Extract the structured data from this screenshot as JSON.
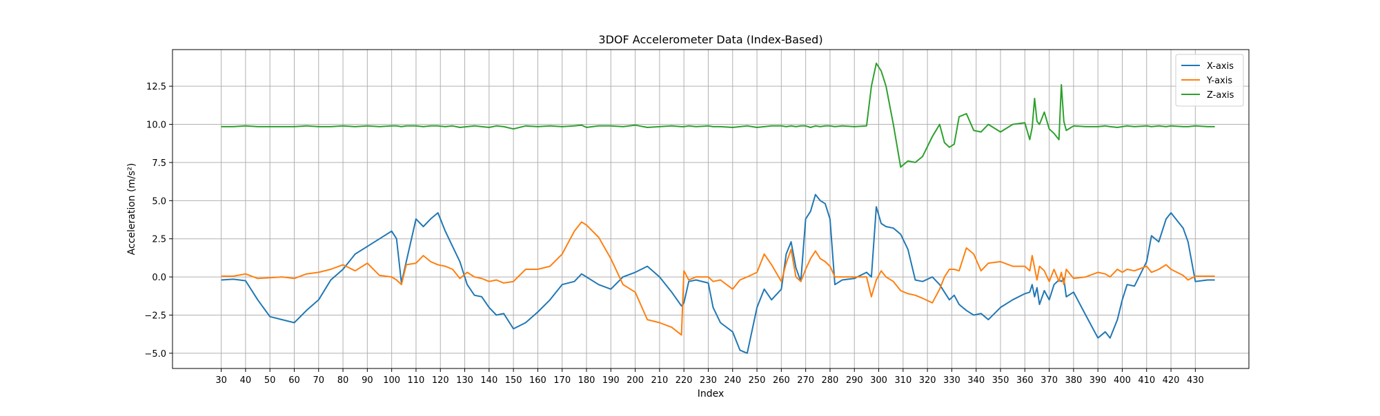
{
  "chart_data": {
    "type": "line",
    "title": "3DOF Accelerometer Data (Index-Based)",
    "xlabel": "Index",
    "ylabel": "Acceleration (m/s²)",
    "xlim": [
      10,
      452
    ],
    "ylim": [
      -6.0,
      14.9
    ],
    "xticks": [
      30,
      40,
      50,
      60,
      70,
      80,
      90,
      100,
      110,
      120,
      130,
      140,
      150,
      160,
      170,
      180,
      190,
      200,
      210,
      220,
      230,
      240,
      250,
      260,
      270,
      280,
      290,
      300,
      310,
      320,
      330,
      340,
      350,
      360,
      370,
      380,
      390,
      400,
      410,
      420,
      430
    ],
    "yticks": [
      -5.0,
      -2.5,
      0.0,
      2.5,
      5.0,
      7.5,
      10.0,
      12.5
    ],
    "ytick_labels": [
      "−5.0",
      "−2.5",
      "0.0",
      "2.5",
      "5.0",
      "7.5",
      "10.0",
      "12.5"
    ],
    "grid": true,
    "legend_position": "top-right",
    "x": [
      30,
      35,
      40,
      45,
      50,
      55,
      60,
      65,
      70,
      75,
      80,
      85,
      90,
      95,
      100,
      102,
      104,
      106,
      110,
      113,
      116,
      119,
      122,
      125,
      128,
      131,
      134,
      137,
      140,
      143,
      146,
      150,
      155,
      160,
      165,
      170,
      175,
      178,
      180,
      185,
      190,
      195,
      200,
      205,
      210,
      215,
      219,
      220,
      222,
      225,
      230,
      232,
      235,
      240,
      243,
      246,
      250,
      253,
      256,
      260,
      262,
      264,
      266,
      268,
      270,
      272,
      274,
      276,
      278,
      280,
      282,
      285,
      290,
      295,
      297,
      299,
      301,
      303,
      306,
      309,
      312,
      315,
      318,
      322,
      325,
      327,
      329,
      331,
      333,
      336,
      339,
      342,
      345,
      350,
      355,
      360,
      362,
      363,
      364,
      365,
      366,
      368,
      370,
      372,
      374,
      375,
      376,
      377,
      380,
      385,
      390,
      393,
      395,
      398,
      400,
      402,
      405,
      410,
      412,
      415,
      418,
      420,
      425,
      427,
      430,
      435,
      438
    ],
    "series": [
      {
        "name": "X-axis",
        "color": "#1f77b4",
        "values": [
          -0.2,
          -0.15,
          -0.25,
          -1.5,
          -2.6,
          -2.8,
          -3.0,
          -2.2,
          -1.5,
          -0.2,
          0.5,
          1.5,
          2.0,
          2.5,
          3.0,
          2.5,
          -0.4,
          1.0,
          3.8,
          3.3,
          3.8,
          4.2,
          3.0,
          2.0,
          1.0,
          -0.5,
          -1.2,
          -1.3,
          -2.0,
          -2.5,
          -2.4,
          -3.4,
          -3.0,
          -2.3,
          -1.5,
          -0.5,
          -0.3,
          0.2,
          0.0,
          -0.5,
          -0.8,
          0.0,
          0.3,
          0.7,
          0.0,
          -1.0,
          -1.9,
          -1.7,
          -0.3,
          -0.2,
          -0.4,
          -2.0,
          -3.0,
          -3.6,
          -4.8,
          -5.0,
          -2.0,
          -0.8,
          -1.5,
          -0.8,
          1.5,
          2.3,
          0.6,
          -0.3,
          3.8,
          4.3,
          5.4,
          5.0,
          4.8,
          3.8,
          -0.5,
          -0.2,
          -0.1,
          0.3,
          0.0,
          4.6,
          3.5,
          3.3,
          3.2,
          2.8,
          1.8,
          -0.2,
          -0.3,
          0.0,
          -0.5,
          -1.0,
          -1.5,
          -1.2,
          -1.8,
          -2.2,
          -2.5,
          -2.4,
          -2.8,
          -2.0,
          -1.5,
          -1.1,
          -1.0,
          -0.5,
          -1.3,
          -0.7,
          -1.8,
          -0.9,
          -1.5,
          -0.5,
          -0.2,
          -0.3,
          -0.1,
          -1.3,
          -1.0,
          -2.5,
          -4.0,
          -3.6,
          -4.0,
          -2.8,
          -1.5,
          -0.5,
          -0.6,
          1.0,
          2.7,
          2.3,
          3.8,
          4.2,
          3.2,
          2.3,
          -0.3,
          -0.2,
          -0.2
        ]
      },
      {
        "name": "Y-axis",
        "color": "#ff7f0e",
        "values": [
          0.05,
          0.05,
          0.2,
          -0.1,
          -0.05,
          0.0,
          -0.1,
          0.2,
          0.3,
          0.5,
          0.8,
          0.4,
          0.9,
          0.1,
          0.0,
          -0.2,
          -0.5,
          0.8,
          0.9,
          1.4,
          1.0,
          0.8,
          0.7,
          0.5,
          -0.1,
          0.3,
          0.0,
          -0.1,
          -0.3,
          -0.2,
          -0.4,
          -0.3,
          0.5,
          0.5,
          0.7,
          1.5,
          3.0,
          3.6,
          3.4,
          2.6,
          1.2,
          -0.5,
          -1.0,
          -2.8,
          -3.0,
          -3.3,
          -3.8,
          0.4,
          -0.2,
          0.0,
          0.0,
          -0.3,
          -0.2,
          -0.8,
          -0.2,
          0.0,
          0.3,
          1.5,
          0.8,
          -0.3,
          0.9,
          1.8,
          0.0,
          -0.3,
          0.5,
          1.2,
          1.7,
          1.2,
          1.0,
          0.7,
          0.0,
          0.0,
          0.0,
          0.0,
          -1.3,
          -0.2,
          0.4,
          0.0,
          -0.3,
          -0.9,
          -1.1,
          -1.2,
          -1.4,
          -1.7,
          -0.8,
          0.0,
          0.5,
          0.5,
          0.4,
          1.9,
          1.5,
          0.4,
          0.9,
          1.0,
          0.7,
          0.7,
          0.4,
          1.4,
          0.6,
          -0.2,
          0.7,
          0.4,
          -0.3,
          0.5,
          -0.3,
          0.3,
          -0.5,
          0.5,
          -0.1,
          0.0,
          0.3,
          0.2,
          0.0,
          0.5,
          0.3,
          0.5,
          0.4,
          0.7,
          0.3,
          0.5,
          0.8,
          0.5,
          0.1,
          -0.2,
          0.05,
          0.05,
          0.05
        ]
      },
      {
        "name": "Z-axis",
        "color": "#2ca02c",
        "values": [
          9.85,
          9.85,
          9.9,
          9.85,
          9.85,
          9.85,
          9.85,
          9.9,
          9.85,
          9.85,
          9.9,
          9.85,
          9.9,
          9.85,
          9.9,
          9.9,
          9.85,
          9.9,
          9.9,
          9.85,
          9.9,
          9.9,
          9.85,
          9.9,
          9.8,
          9.85,
          9.9,
          9.85,
          9.8,
          9.9,
          9.85,
          9.7,
          9.9,
          9.85,
          9.9,
          9.85,
          9.9,
          9.95,
          9.8,
          9.9,
          9.9,
          9.85,
          9.95,
          9.8,
          9.85,
          9.9,
          9.85,
          9.85,
          9.9,
          9.85,
          9.9,
          9.85,
          9.85,
          9.8,
          9.85,
          9.9,
          9.8,
          9.85,
          9.9,
          9.9,
          9.85,
          9.9,
          9.85,
          9.9,
          9.9,
          9.8,
          9.9,
          9.85,
          9.9,
          9.9,
          9.85,
          9.9,
          9.85,
          9.9,
          12.5,
          14.0,
          13.5,
          12.5,
          10.0,
          7.2,
          7.6,
          7.5,
          7.9,
          9.2,
          10.0,
          8.8,
          8.5,
          8.7,
          10.5,
          10.7,
          9.6,
          9.5,
          10.0,
          9.5,
          10.0,
          10.1,
          9.0,
          9.8,
          11.7,
          10.2,
          10.0,
          10.8,
          9.7,
          9.4,
          9.0,
          12.6,
          10.2,
          9.6,
          9.9,
          9.85,
          9.85,
          9.9,
          9.85,
          9.8,
          9.85,
          9.9,
          9.85,
          9.9,
          9.85,
          9.9,
          9.85,
          9.9,
          9.85,
          9.85,
          9.9,
          9.85,
          9.85
        ]
      }
    ]
  }
}
